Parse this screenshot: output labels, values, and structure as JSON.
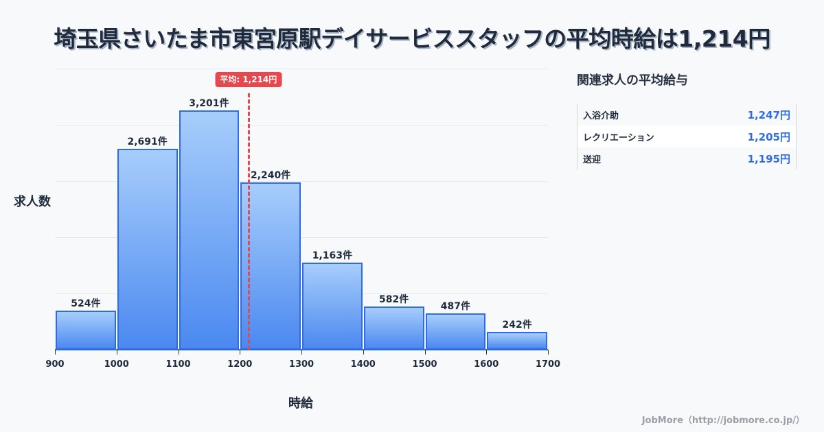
{
  "title": "埼玉県さいたま市東宮原駅デイサービススタッフの平均時給は1,214円",
  "chart_data": {
    "type": "bar",
    "subtype": "histogram",
    "title": "埼玉県さいたま市東宮原駅デイサービススタッフの平均時給は1,214円",
    "xlabel": "時給",
    "ylabel": "求人数",
    "bins": [
      [
        900,
        1000
      ],
      [
        1000,
        1100
      ],
      [
        1100,
        1200
      ],
      [
        1200,
        1300
      ],
      [
        1300,
        1400
      ],
      [
        1400,
        1500
      ],
      [
        1500,
        1600
      ],
      [
        1600,
        1700
      ]
    ],
    "categories": [
      "900-1000",
      "1000-1100",
      "1100-1200",
      "1200-1300",
      "1300-1400",
      "1400-1500",
      "1500-1600",
      "1600-1700"
    ],
    "values": [
      524,
      2691,
      3201,
      2240,
      1163,
      582,
      487,
      242
    ],
    "value_labels": [
      "524件",
      "2,691件",
      "3,201件",
      "2,240件",
      "1,163件",
      "582件",
      "487件",
      "242件"
    ],
    "x_ticks": [
      "900",
      "1000",
      "1100",
      "1200",
      "1300",
      "1400",
      "1500",
      "1600",
      "1700"
    ],
    "xlim": [
      900,
      1700
    ],
    "ylim": [
      0,
      3760
    ],
    "grid": true,
    "annotations": [
      {
        "type": "vline",
        "x": 1214,
        "label": "平均: 1,214円",
        "color": "#e5484d"
      }
    ],
    "colors": {
      "bar_fill_top": "#a7cdfb",
      "bar_fill_bottom": "#4b89f0",
      "bar_border": "#2f6be6"
    }
  },
  "average": {
    "value": 1214,
    "label": "平均: 1,214円"
  },
  "sidebar": {
    "title": "関連求人の平均給与",
    "items": [
      {
        "name": "入浴介助",
        "value": "1,247円"
      },
      {
        "name": "レクリエーション",
        "value": "1,205円"
      },
      {
        "name": "送迎",
        "value": "1,195円"
      }
    ]
  },
  "footer": "JobMore（http://jobmore.co.jp/）"
}
